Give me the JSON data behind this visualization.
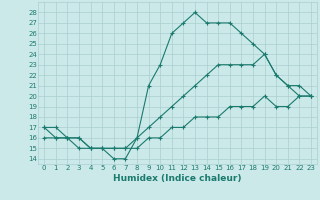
{
  "title": "",
  "xlabel": "Humidex (Indice chaleur)",
  "ylabel": "",
  "xlim": [
    -0.5,
    23.5
  ],
  "ylim": [
    13.5,
    29
  ],
  "yticks": [
    14,
    15,
    16,
    17,
    18,
    19,
    20,
    21,
    22,
    23,
    24,
    25,
    26,
    27,
    28
  ],
  "xticks": [
    0,
    1,
    2,
    3,
    4,
    5,
    6,
    7,
    8,
    9,
    10,
    11,
    12,
    13,
    14,
    15,
    16,
    17,
    18,
    19,
    20,
    21,
    22,
    23
  ],
  "bg_color": "#cce9e9",
  "grid_color": "#aacfcf",
  "line_color": "#1a7a6e",
  "line1_x": [
    0,
    1,
    2,
    3,
    4,
    5,
    6,
    7,
    8,
    9,
    10,
    11,
    12,
    13,
    14,
    15,
    16,
    17,
    18,
    19,
    20,
    21,
    22,
    23
  ],
  "line1_y": [
    17,
    17,
    16,
    16,
    15,
    15,
    14,
    14,
    16,
    21,
    23,
    26,
    27,
    28,
    27,
    27,
    27,
    26,
    25,
    24,
    22,
    21,
    20,
    20
  ],
  "line2_x": [
    0,
    1,
    2,
    3,
    4,
    5,
    6,
    7,
    8,
    9,
    10,
    11,
    12,
    13,
    14,
    15,
    16,
    17,
    18,
    19,
    20,
    21,
    22,
    23
  ],
  "line2_y": [
    17,
    16,
    16,
    15,
    15,
    15,
    15,
    15,
    16,
    17,
    18,
    19,
    20,
    21,
    22,
    23,
    23,
    23,
    23,
    24,
    22,
    21,
    21,
    20
  ],
  "line3_x": [
    0,
    1,
    2,
    3,
    4,
    5,
    6,
    7,
    8,
    9,
    10,
    11,
    12,
    13,
    14,
    15,
    16,
    17,
    18,
    19,
    20,
    21,
    22,
    23
  ],
  "line3_y": [
    16,
    16,
    16,
    16,
    15,
    15,
    15,
    15,
    15,
    16,
    16,
    17,
    17,
    18,
    18,
    18,
    19,
    19,
    19,
    20,
    19,
    19,
    20,
    20
  ],
  "xlabel_fontsize": 6.5,
  "tick_fontsize": 5.0
}
